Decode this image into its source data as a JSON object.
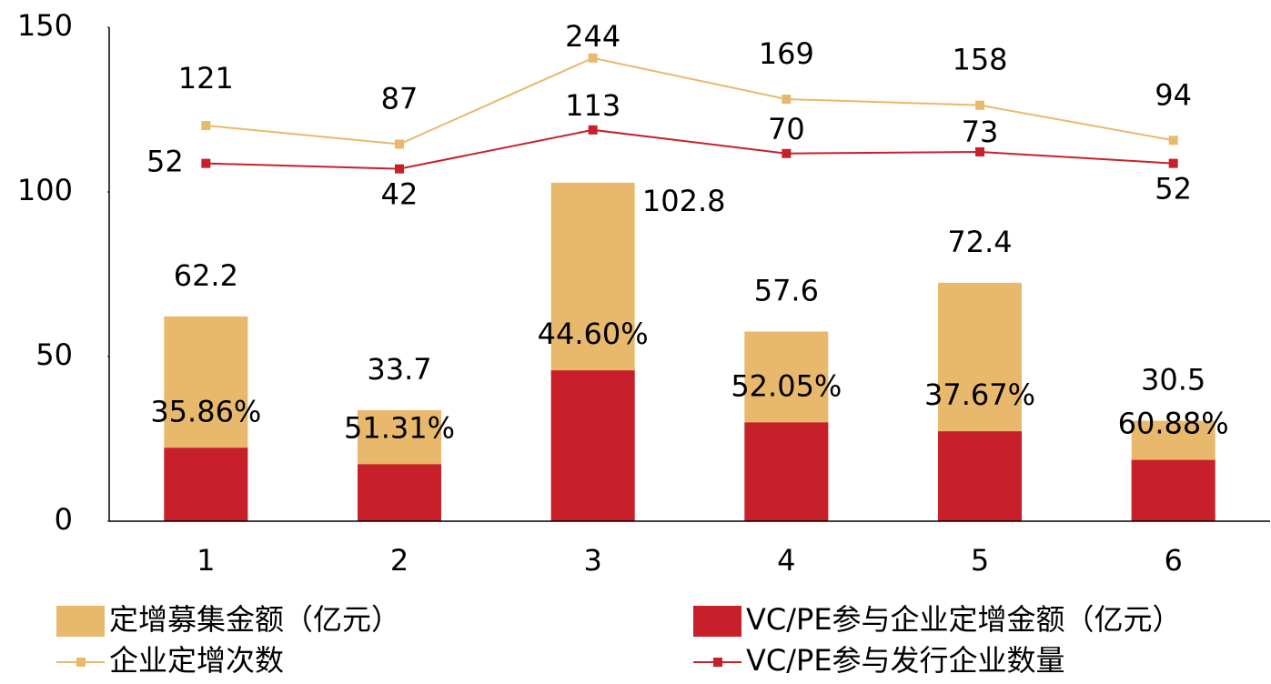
{
  "chart_data": {
    "type": "bar",
    "categories": [
      "1",
      "2",
      "3",
      "4",
      "5",
      "6"
    ],
    "ylim": [
      0,
      150
    ],
    "yticks": [
      0,
      50,
      100,
      150
    ],
    "y2lim": [
      -600,
      300
    ],
    "series": [
      {
        "name": "定增募集金额（亿元）",
        "type": "bar",
        "color": "#e8b96c",
        "values": [
          62.2,
          33.7,
          102.8,
          57.6,
          72.4,
          30.5
        ]
      },
      {
        "name": "VC/PE参与企业定增金额（亿元）",
        "type": "bar",
        "color": "#c8202a",
        "values": [
          22.3,
          17.3,
          45.8,
          30.0,
          27.3,
          18.6
        ],
        "share_labels": [
          "35.86%",
          "51.31%",
          "44.60%",
          "52.05%",
          "37.67%",
          "60.88%"
        ]
      },
      {
        "name": "企业定增次数",
        "type": "line",
        "axis": "y2",
        "color": "#e8b96c",
        "values": [
          121,
          87,
          244,
          169,
          158,
          94
        ]
      },
      {
        "name": "VC/PE参与发行企业数量",
        "type": "line",
        "axis": "y2",
        "color": "#c8202a",
        "values": [
          52,
          42,
          113,
          70,
          73,
          52
        ]
      }
    ]
  }
}
